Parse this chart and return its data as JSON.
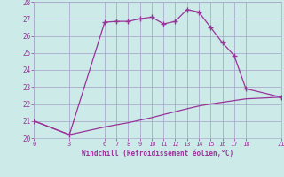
{
  "xlabel": "Windchill (Refroidissement éolien,°C)",
  "bg_color": "#cceae8",
  "grid_color": "#aaaacc",
  "line_color": "#993399",
  "x_ticks": [
    0,
    3,
    6,
    7,
    8,
    9,
    10,
    11,
    12,
    13,
    14,
    15,
    16,
    17,
    18,
    21
  ],
  "ylim": [
    20,
    28
  ],
  "xlim": [
    0,
    21
  ],
  "yticks": [
    20,
    21,
    22,
    23,
    24,
    25,
    26,
    27,
    28
  ],
  "upper_curve_x": [
    0,
    3,
    6,
    7,
    8,
    9,
    10,
    11,
    12,
    13,
    14,
    15,
    16,
    17,
    18,
    21
  ],
  "upper_curve_y": [
    21.0,
    20.2,
    26.8,
    26.85,
    26.85,
    27.0,
    27.1,
    26.7,
    26.85,
    27.55,
    27.4,
    26.5,
    25.6,
    24.85,
    22.9,
    22.4
  ],
  "lower_curve_x": [
    0,
    3,
    6,
    7,
    8,
    9,
    10,
    11,
    12,
    13,
    14,
    15,
    16,
    17,
    18,
    21
  ],
  "lower_curve_y": [
    21.0,
    20.2,
    20.65,
    20.78,
    20.9,
    21.05,
    21.2,
    21.38,
    21.55,
    21.72,
    21.88,
    22.0,
    22.1,
    22.2,
    22.3,
    22.4
  ]
}
